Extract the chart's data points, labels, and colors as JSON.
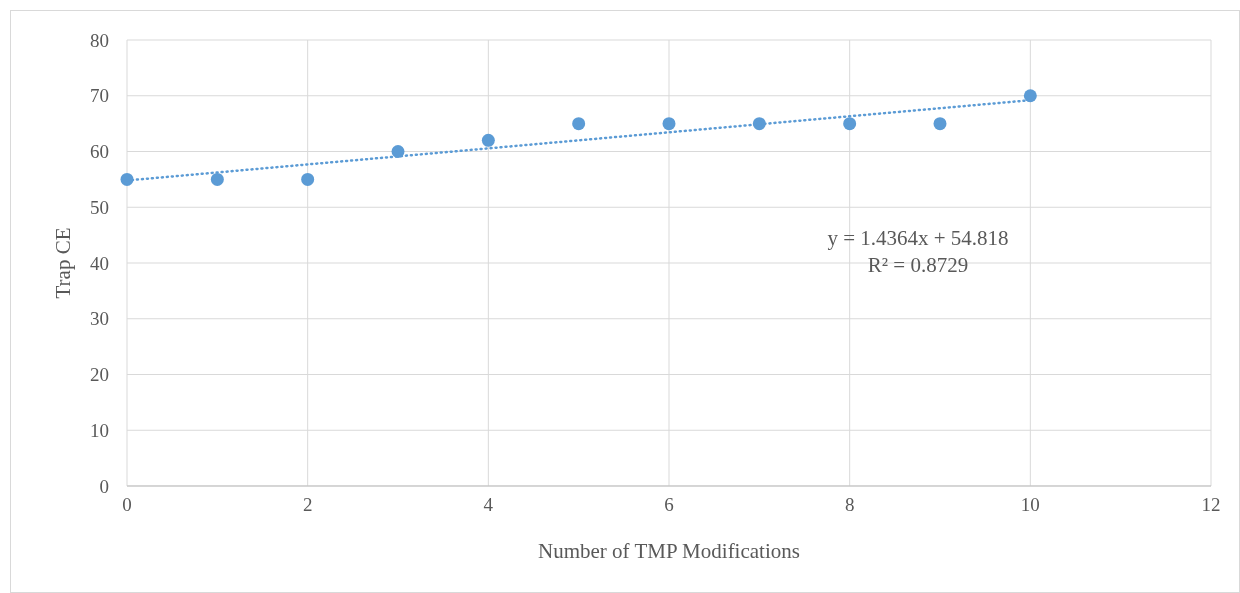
{
  "chart_data": {
    "type": "scatter",
    "xlabel": "Number of TMP Modifications",
    "ylabel": "Trap CE",
    "xlim": [
      0,
      12
    ],
    "xticks": [
      0,
      2,
      4,
      6,
      8,
      10,
      12
    ],
    "ylim": [
      0,
      80
    ],
    "yticks": [
      0,
      10,
      20,
      30,
      40,
      50,
      60,
      70,
      80
    ],
    "grid": true,
    "series": [
      {
        "color": "#5b9bd5",
        "marker": "circle",
        "x": [
          0,
          1,
          2,
          3,
          4,
          5,
          6,
          7,
          8,
          9,
          10
        ],
        "values": [
          55,
          55,
          55,
          60,
          62,
          65,
          65,
          65,
          65,
          65,
          70
        ]
      },
      {
        "type": "line",
        "color": "#5b9bd5",
        "marker": "none",
        "line_style": "dotted",
        "x": [
          0,
          10
        ],
        "values": [
          54.8,
          69.2
        ]
      }
    ],
    "annotations": [
      "y = 1.4364x + 54.818",
      "R² = 0.8729"
    ]
  }
}
